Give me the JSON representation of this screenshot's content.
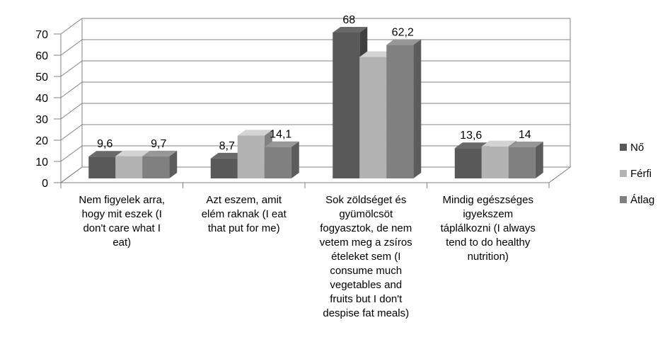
{
  "chart_data": {
    "type": "bar",
    "variant": "3d-clustered-column",
    "title": "",
    "xlabel": "",
    "ylabel": "",
    "ylim": [
      0,
      70
    ],
    "yticks": [
      0,
      10,
      20,
      30,
      40,
      50,
      60,
      70
    ],
    "grid": true,
    "legend_position": "right",
    "categories": [
      [
        "Nem figyelek arra,",
        "hogy mit eszek (I",
        "don't care what I",
        "eat)"
      ],
      [
        "Azt eszem, amit",
        "elém raknak (I eat",
        "that put for me)"
      ],
      [
        "Sok zöldséget és",
        "gyümölcsöt",
        "fogyasztok, de nem",
        "vetem meg a zsíros",
        "ételeket sem (I",
        "consume much",
        "vegetables and",
        "fruits but I don't",
        "despise fat meals)"
      ],
      [
        "Mindig egészséges",
        "igyekszem",
        "táplálkozni (I always",
        "tend to do healthy",
        "nutrition)"
      ]
    ],
    "series": [
      {
        "name": "Nő",
        "color": "#595959",
        "values": [
          9.6,
          8.7,
          68,
          13.6
        ],
        "labels": [
          "9,6",
          "8,7",
          "68",
          "13,6"
        ]
      },
      {
        "name": "Férfi",
        "color": "#b3b3b3",
        "values": [
          9.8,
          19.5,
          56.5,
          14.4
        ],
        "labels": [
          "",
          "",
          "",
          ""
        ]
      },
      {
        "name": "Átlag",
        "color": "#808080",
        "values": [
          9.7,
          14.1,
          62.2,
          14
        ],
        "labels": [
          "9,7",
          "14,1",
          "62,2",
          "14"
        ]
      }
    ]
  }
}
